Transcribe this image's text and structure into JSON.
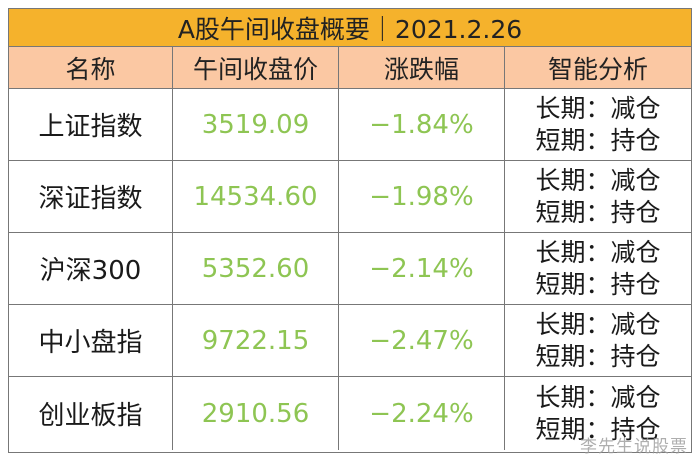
{
  "title": "A股午间收盘概要｜2021.2.26",
  "headers": [
    "名称",
    "午间收盘价",
    "涨跌幅",
    "智能分析"
  ],
  "rows": [
    {
      "name": "上证指数",
      "price": "3519.09",
      "change": "−1.84%",
      "long": "长期：减仓",
      "short": "短期：持仓"
    },
    {
      "name": "深证指数",
      "price": "14534.60",
      "change": "−1.98%",
      "long": "长期：减仓",
      "short": "短期：持仓"
    },
    {
      "name": "沪深300",
      "price": "5352.60",
      "change": "−2.14%",
      "long": "长期：减仓",
      "short": "短期：持仓"
    },
    {
      "name": "中小盘指",
      "price": "9722.15",
      "change": "−2.47%",
      "long": "长期：减仓",
      "short": "短期：持仓"
    },
    {
      "name": "创业板指",
      "price": "2910.56",
      "change": "−2.24%",
      "long": "长期：减仓",
      "short": "短期：持仓"
    }
  ],
  "watermark": "李先生说股票",
  "colors": {
    "title_bg": "#f5b22c",
    "header_bg": "#fbc8a3",
    "value_green": "#8ec553"
  }
}
